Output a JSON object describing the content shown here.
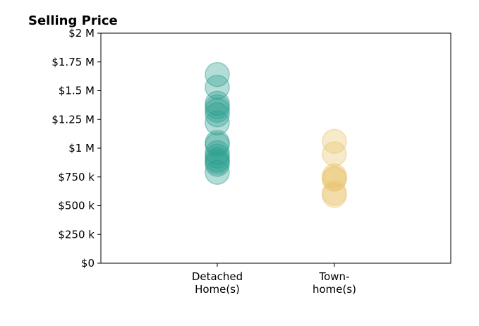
{
  "chart_data": {
    "type": "scatter",
    "title": "Selling Price",
    "xlabel": "",
    "ylabel": "",
    "ylim": [
      0,
      2000000
    ],
    "yticks": [
      {
        "value": 0,
        "label": "$0"
      },
      {
        "value": 250000,
        "label": "$250 k"
      },
      {
        "value": 500000,
        "label": "$500 k"
      },
      {
        "value": 750000,
        "label": "$750 k"
      },
      {
        "value": 1000000,
        "label": "$1 M"
      },
      {
        "value": 1250000,
        "label": "$1.25 M"
      },
      {
        "value": 1500000,
        "label": "$1.5 M"
      },
      {
        "value": 1750000,
        "label": "$1.75 M"
      },
      {
        "value": 2000000,
        "label": "$2 M"
      }
    ],
    "categories": [
      {
        "lines": [
          "Detached",
          "Home(s)"
        ]
      },
      {
        "lines": [
          "Town-",
          "home(s)"
        ]
      }
    ],
    "series": [
      {
        "category_index": 0,
        "color": "#2a9d8f",
        "values": [
          1640000,
          1530000,
          1390000,
          1360000,
          1330000,
          1290000,
          1220000,
          1050000,
          1030000,
          960000,
          930000,
          900000,
          880000,
          860000,
          790000
        ]
      },
      {
        "category_index": 1,
        "color": "#e9c46a",
        "values": [
          1060000,
          950000,
          760000,
          740000,
          730000,
          610000,
          590000
        ]
      }
    ],
    "grid": false,
    "legend": "none"
  }
}
